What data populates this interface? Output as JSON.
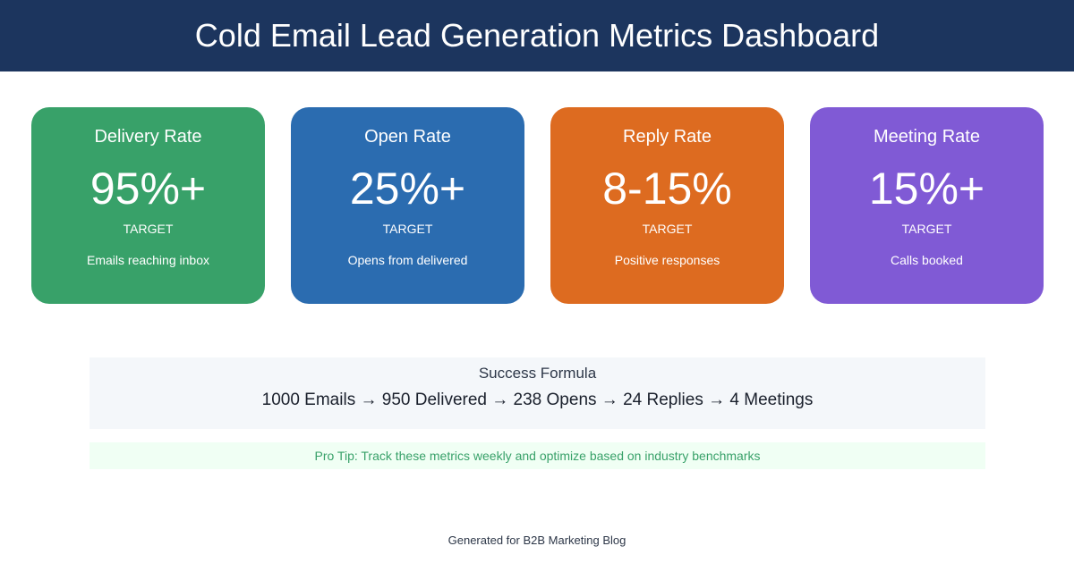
{
  "header": {
    "title": "Cold Email Lead Generation Metrics Dashboard"
  },
  "cards": [
    {
      "title": "Delivery Rate",
      "value": "95%+",
      "label": "TARGET",
      "description": "Emails reaching inbox"
    },
    {
      "title": "Open Rate",
      "value": "25%+",
      "label": "TARGET",
      "description": "Opens from delivered"
    },
    {
      "title": "Reply Rate",
      "value": "8-15%",
      "label": "TARGET",
      "description": "Positive responses"
    },
    {
      "title": "Meeting Rate",
      "value": "15%+",
      "label": "TARGET",
      "description": "Calls booked"
    }
  ],
  "formula": {
    "title": "Success Formula",
    "text": "1000 Emails → 950 Delivered → 238 Opens → 24 Replies → 4 Meetings"
  },
  "tip": "Pro Tip: Track these metrics weekly and optimize based on industry benchmarks",
  "footer": "Generated for B2B Marketing Blog"
}
